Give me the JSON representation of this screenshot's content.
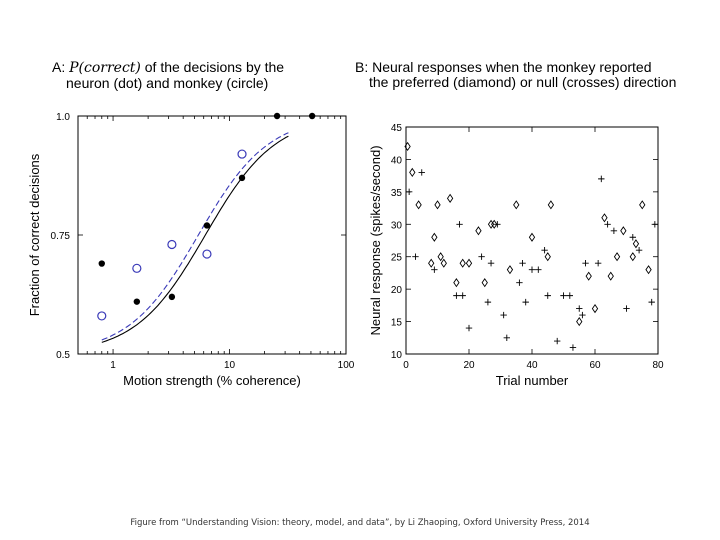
{
  "chart_data": [
    {
      "type": "scatter",
      "title_line1_prefix": "A:",
      "title_math": "P(correct)",
      "title_line1_suffix": "of the decisions by the",
      "title_line2": "neuron (dot) and monkey (circle)",
      "xlabel": "Motion strength (% coherence)",
      "ylabel": "Fraction of correct decisions",
      "xscale": "log",
      "xlim": [
        0.5,
        100
      ],
      "ylim": [
        0.5,
        1.0
      ],
      "xticks": [
        {
          "v": 1,
          "label": "1"
        },
        {
          "v": 10,
          "label": "10"
        },
        {
          "v": 100,
          "label": "100"
        }
      ],
      "yticks": [
        {
          "v": 0.5,
          "label": "0.5"
        },
        {
          "v": 0.75,
          "label": "0.75"
        },
        {
          "v": 1.0,
          "label": "1.0"
        }
      ],
      "series": [
        {
          "name": "neuron (dot)",
          "marker": "dot",
          "color": "#000000",
          "x": [
            0.8,
            1.6,
            3.2,
            6.4,
            12.8,
            25.6,
            51.2
          ],
          "y": [
            0.69,
            0.61,
            0.62,
            0.77,
            0.87,
            1.0,
            1.0
          ]
        },
        {
          "name": "monkey (circle)",
          "marker": "circle",
          "color": "#3a3ab8",
          "x": [
            0.8,
            1.6,
            3.2,
            6.4,
            12.8
          ],
          "y": [
            0.58,
            0.68,
            0.73,
            0.71,
            0.92
          ]
        }
      ],
      "fits": [
        {
          "name": "neuron fit",
          "style": "solid",
          "color": "#000000",
          "x50": 6.2,
          "slope": 1.45
        },
        {
          "name": "monkey fit",
          "style": "dashed",
          "color": "#3a3ab8",
          "x50": 5.4,
          "slope": 1.45
        }
      ]
    },
    {
      "type": "scatter",
      "title_line1": "B: Neural responses when the monkey reported",
      "title_line2": "the preferred (diamond) or null (crosses) direction",
      "xlabel": "Trial number",
      "ylabel": "Neural response (spikes/second)",
      "xlim": [
        0,
        80
      ],
      "ylim": [
        10,
        45
      ],
      "xticks": [
        {
          "v": 0,
          "label": "0"
        },
        {
          "v": 20,
          "label": "20"
        },
        {
          "v": 40,
          "label": "40"
        },
        {
          "v": 60,
          "label": "60"
        },
        {
          "v": 80,
          "label": "80"
        }
      ],
      "yticks": [
        {
          "v": 10,
          "label": "10"
        },
        {
          "v": 15,
          "label": "15"
        },
        {
          "v": 20,
          "label": "20"
        },
        {
          "v": 25,
          "label": "25"
        },
        {
          "v": 30,
          "label": "30"
        },
        {
          "v": 35,
          "label": "35"
        },
        {
          "v": 40,
          "label": "40"
        },
        {
          "v": 45,
          "label": "45"
        }
      ],
      "series": [
        {
          "name": "preferred (diamond)",
          "marker": "diamond",
          "x": [
            0.5,
            2,
            4,
            8,
            9,
            10,
            11,
            12,
            14,
            16,
            18,
            20,
            23,
            25,
            27,
            28,
            33,
            35,
            40,
            45,
            46,
            55,
            58,
            60,
            63,
            65,
            67,
            69,
            72,
            73,
            75,
            77
          ],
          "y": [
            42,
            38,
            33,
            24,
            28,
            33,
            25,
            24,
            34,
            21,
            24,
            24,
            29,
            21,
            30,
            30,
            23,
            33,
            28,
            25,
            33,
            15,
            22,
            17,
            31,
            22,
            25,
            29,
            25,
            27,
            33,
            23
          ]
        },
        {
          "name": "null (crosses)",
          "marker": "cross",
          "x": [
            1,
            3,
            5,
            9,
            16,
            17,
            18,
            20,
            24,
            26,
            27,
            29,
            31,
            32,
            36,
            37,
            38,
            40,
            42,
            44,
            45,
            48,
            50,
            52,
            53,
            55,
            56,
            57,
            61,
            62,
            64,
            66,
            70,
            72,
            74,
            78,
            79
          ],
          "y": [
            35,
            25,
            38,
            23,
            19,
            30,
            19,
            14,
            25,
            18,
            24,
            30,
            16,
            12.5,
            21,
            24,
            18,
            23,
            23,
            26,
            19,
            12,
            19,
            19,
            11,
            17,
            16,
            24,
            24,
            37,
            30,
            29,
            17,
            28,
            26,
            18,
            30
          ]
        }
      ]
    }
  ],
  "caption": "Figure from “Understanding Vision: theory, model, and data”, by Li Zhaoping, Oxford University Press, 2014"
}
